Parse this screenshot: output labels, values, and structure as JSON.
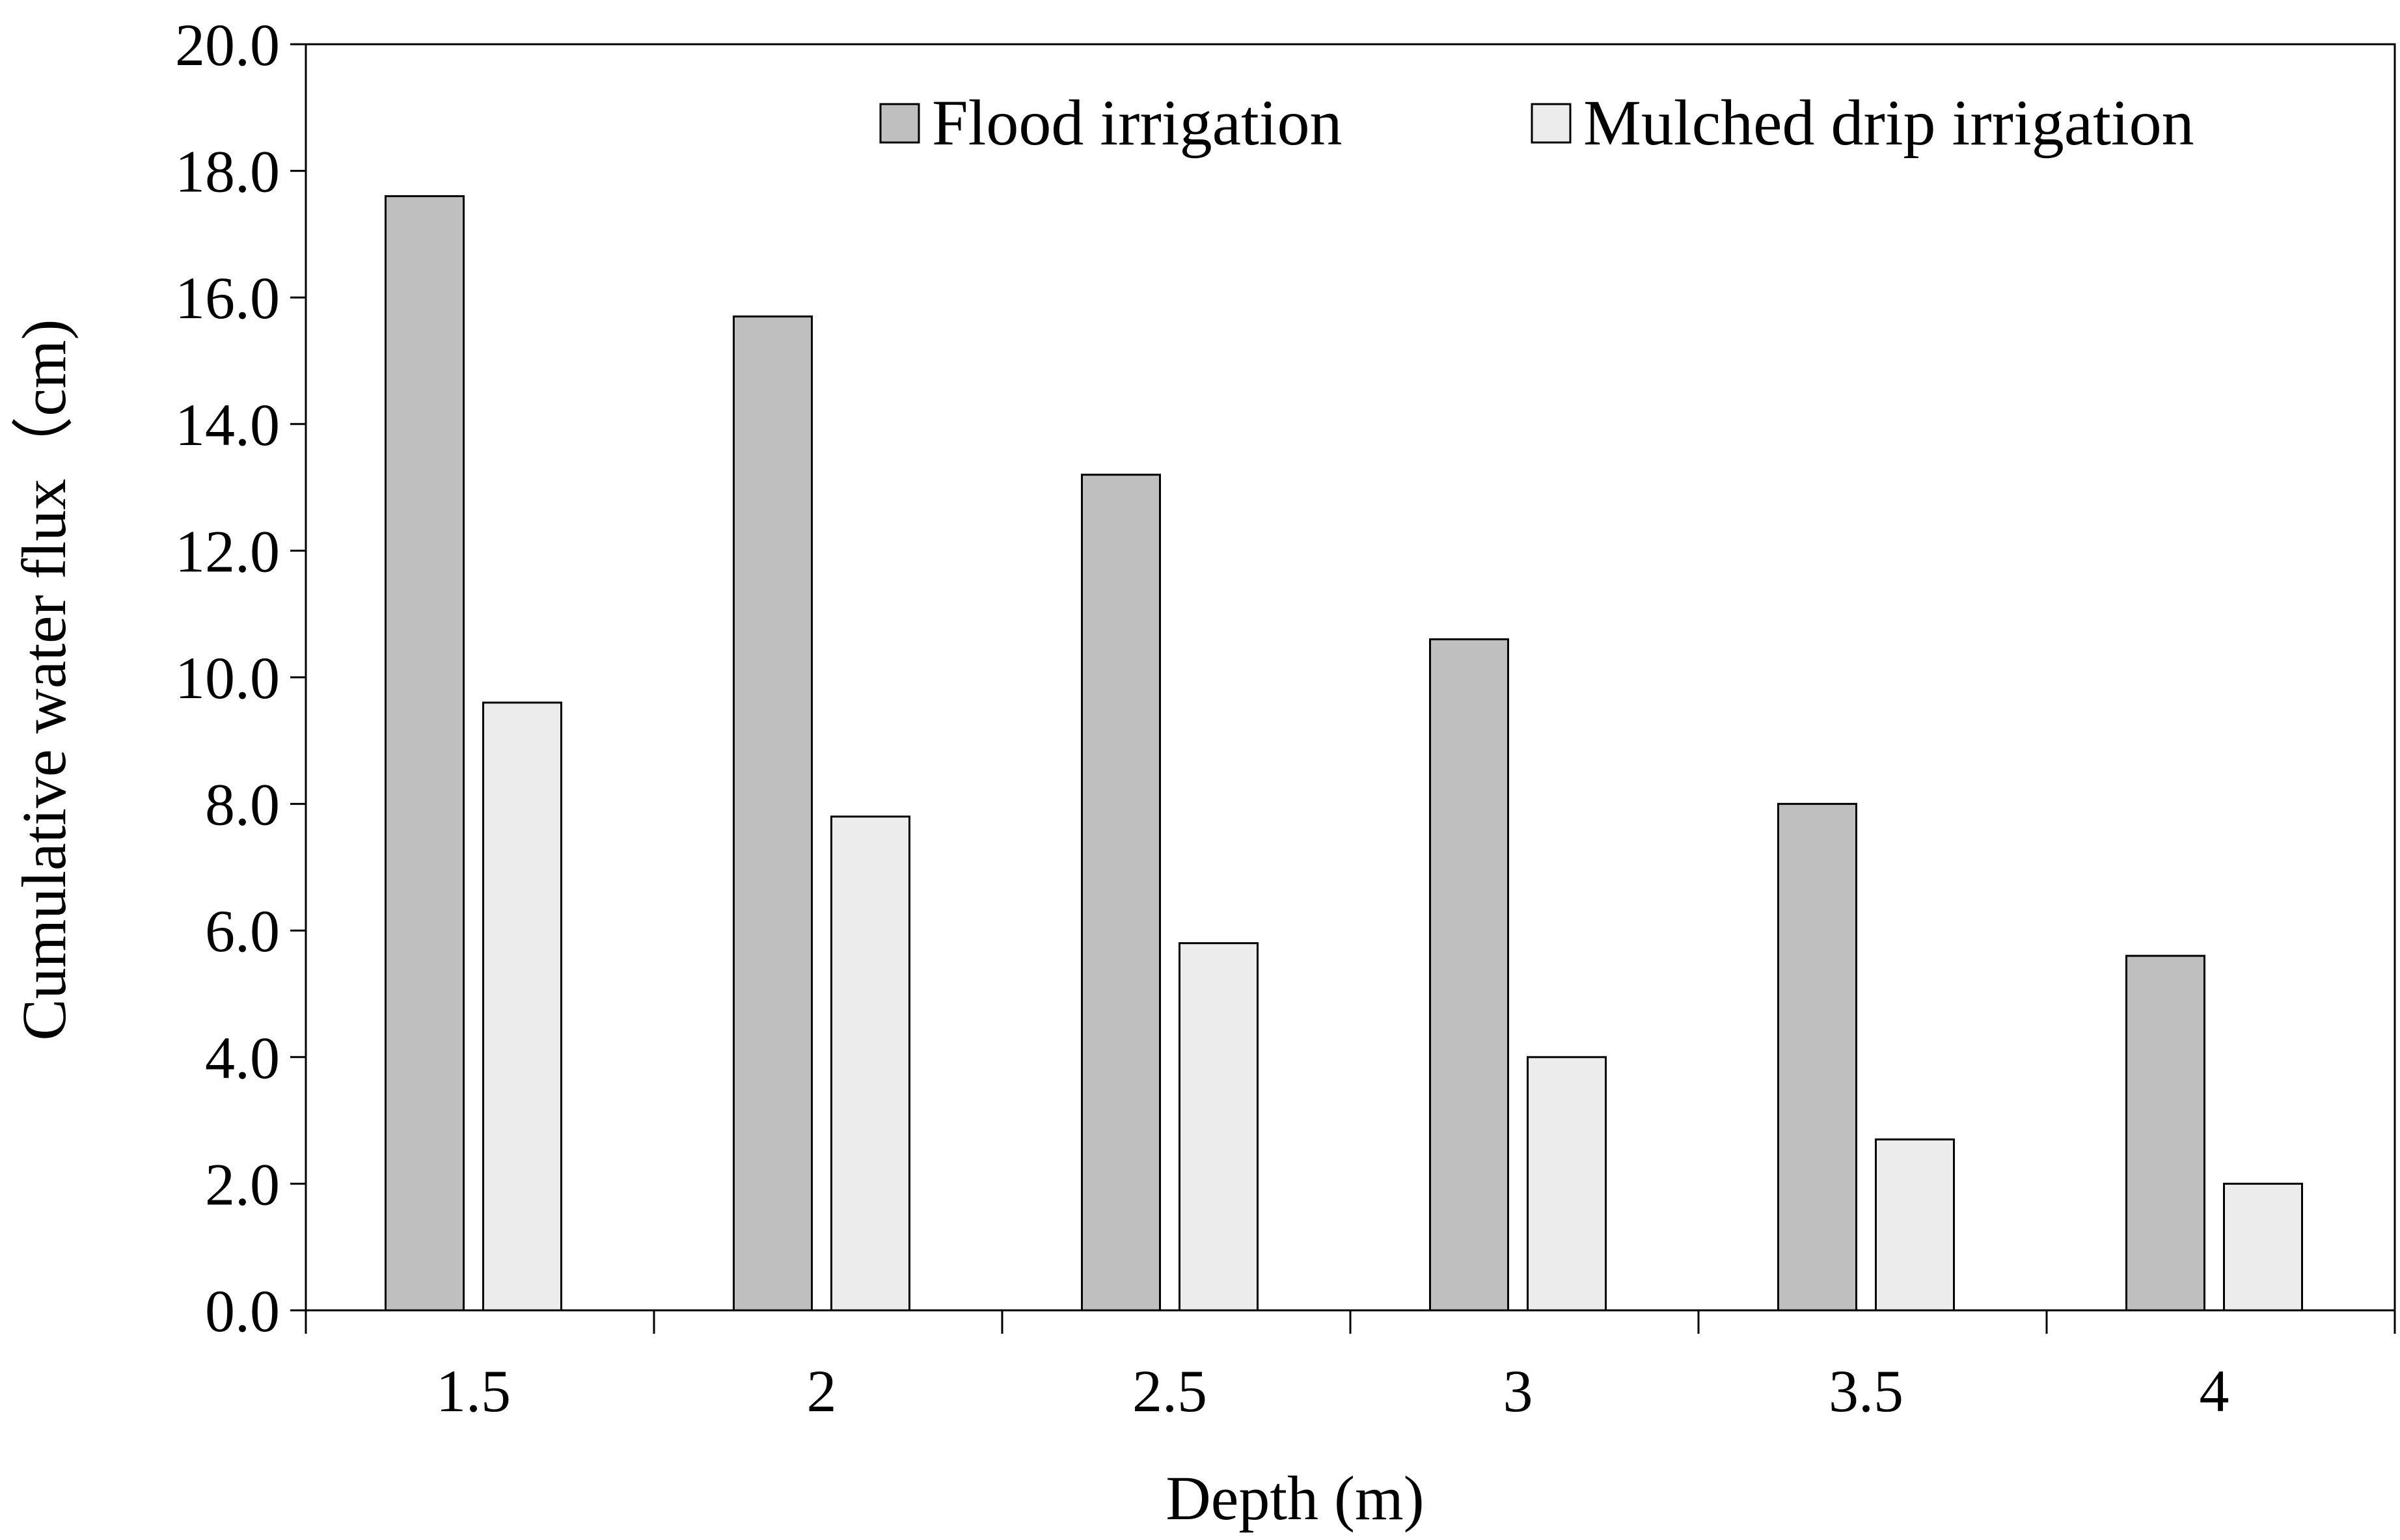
{
  "chart_data": {
    "type": "bar",
    "title": "",
    "xlabel": "Depth (m)",
    "ylabel": "Cumulative water flux（cm)",
    "categories": [
      "1.5",
      "2",
      "2.5",
      "3",
      "3.5",
      "4"
    ],
    "series": [
      {
        "name": "Flood irrigation",
        "color": "#bfbfbf",
        "values": [
          17.6,
          15.7,
          13.2,
          10.6,
          8.0,
          5.6
        ]
      },
      {
        "name": "Mulched drip irrigation",
        "color": "#ececec",
        "values": [
          9.6,
          7.8,
          5.8,
          4.0,
          2.7,
          2.0
        ]
      }
    ],
    "ylim": [
      0,
      20
    ],
    "yticks": [
      "0.0",
      "2.0",
      "4.0",
      "6.0",
      "8.0",
      "10.0",
      "12.0",
      "14.0",
      "16.0",
      "18.0",
      "20.0"
    ],
    "grid": false,
    "legend_position": "top-right"
  }
}
